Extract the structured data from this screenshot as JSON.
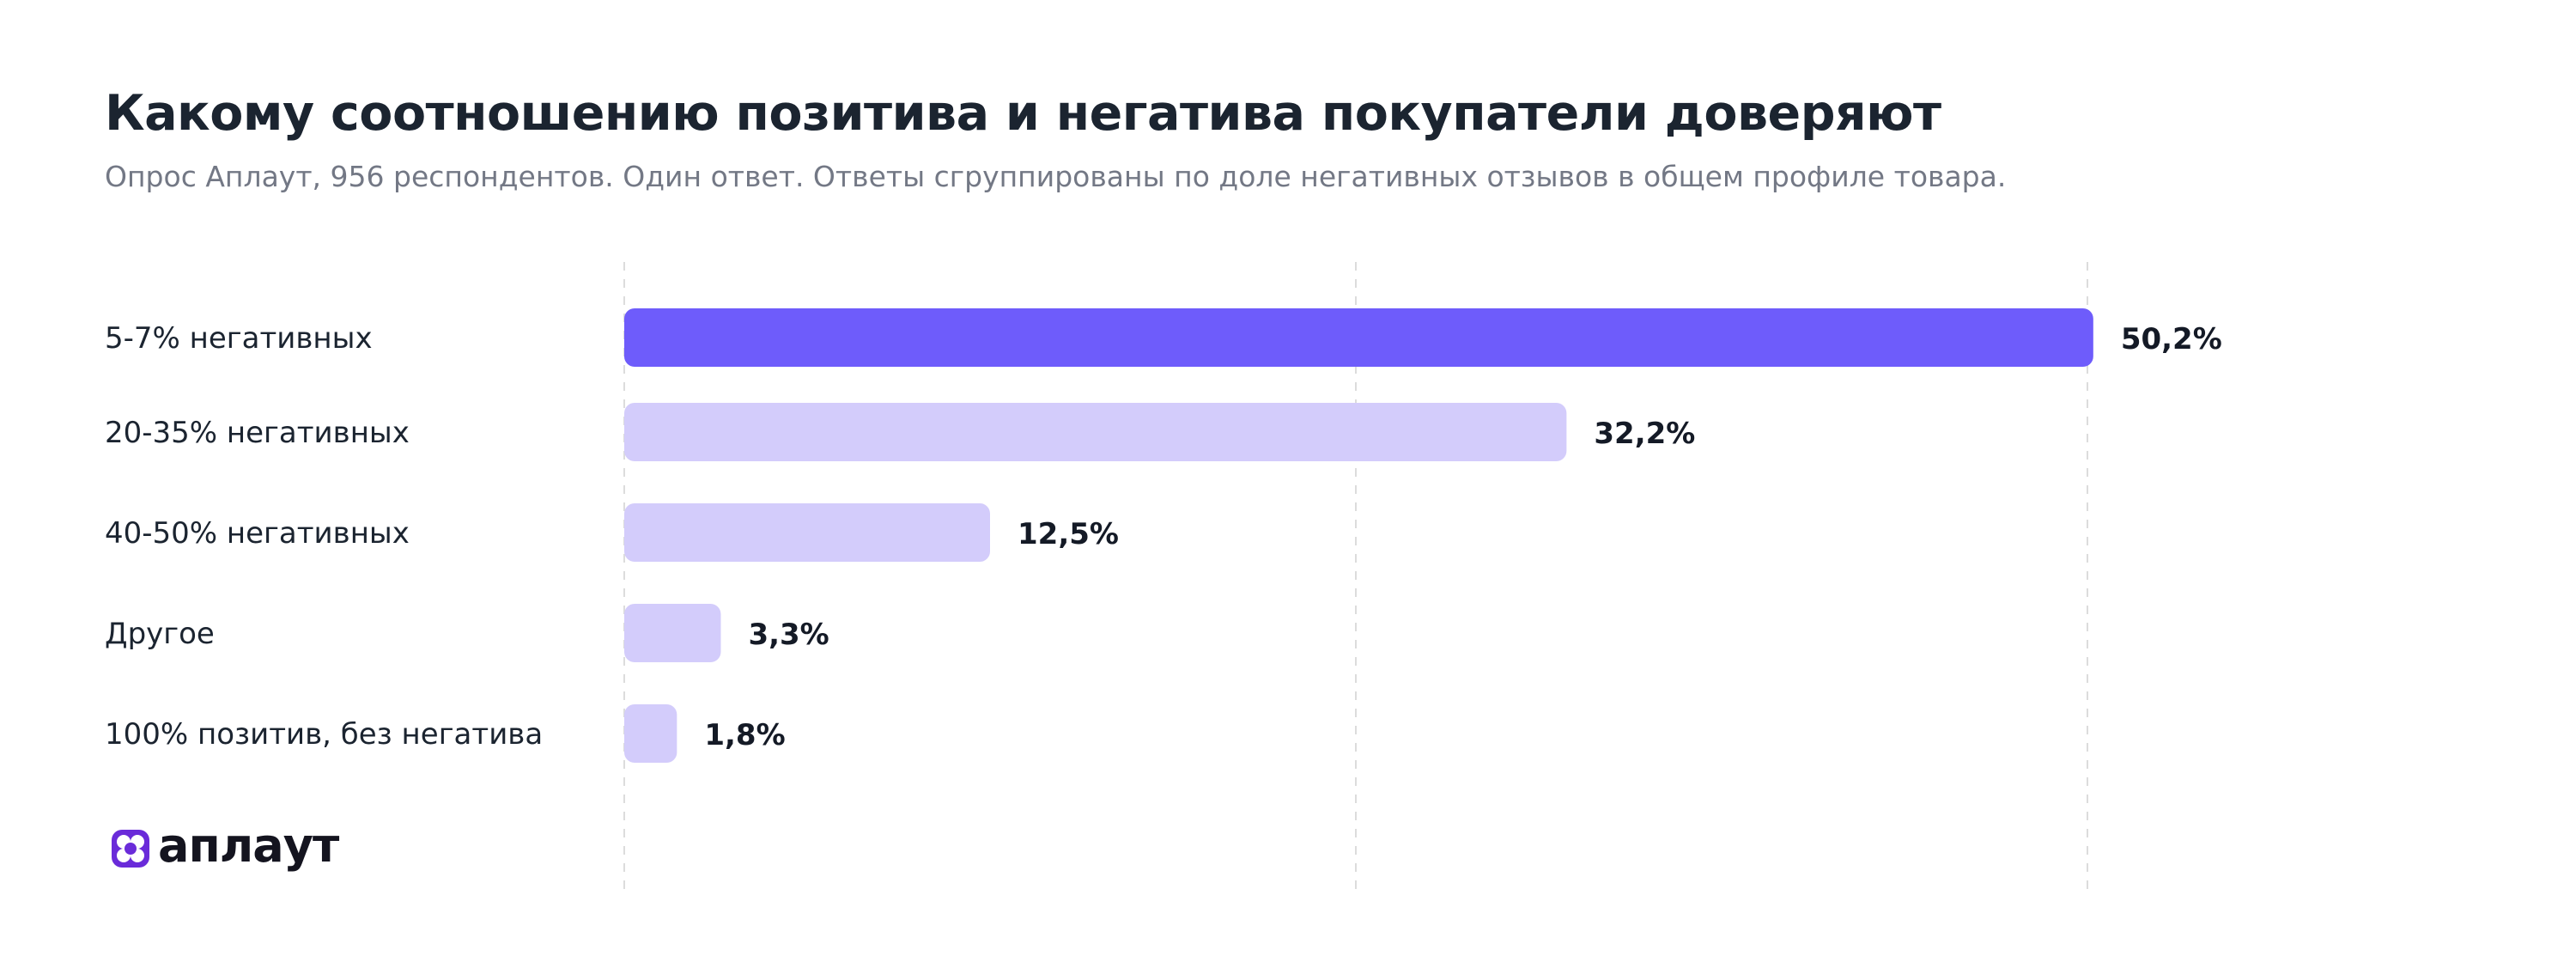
{
  "header": {
    "title": "Какому соотношению позитива и негатива покупатели доверяют",
    "subtitle": "Опрос Аплаут, 956 респондентов. Один ответ. Ответы сгруппированы по доле негативных отзывов в общем профиле товара."
  },
  "logo": {
    "text": "аплаут",
    "icon": "aplaut-logo-icon"
  },
  "chart_data": {
    "type": "bar",
    "orientation": "horizontal",
    "title": "Какому соотношению позитива и негатива покупатели доверяют",
    "subtitle": "Опрос Аплаут, 956 респондентов. Один ответ. Ответы сгруппированы по доле негативных отзывов в общем профиле товара.",
    "categories": [
      "5-7% негативных",
      "20-35% негативных",
      "40-50% негативных",
      "Другое",
      "100% позитив, без негатива"
    ],
    "values": [
      50.2,
      32.2,
      12.5,
      3.3,
      1.8
    ],
    "data_labels": [
      "50,2%",
      "32,2%",
      "12,5%",
      "3,3%",
      "1,8%"
    ],
    "xlim": [
      0,
      50
    ],
    "grid": "vertical dashed",
    "colors": {
      "highlight": "#6e5cfb",
      "default": "#d3ccfb",
      "label_text": "#1b2430",
      "value_text": "#141a26",
      "grid": "#dcdcdc"
    }
  }
}
